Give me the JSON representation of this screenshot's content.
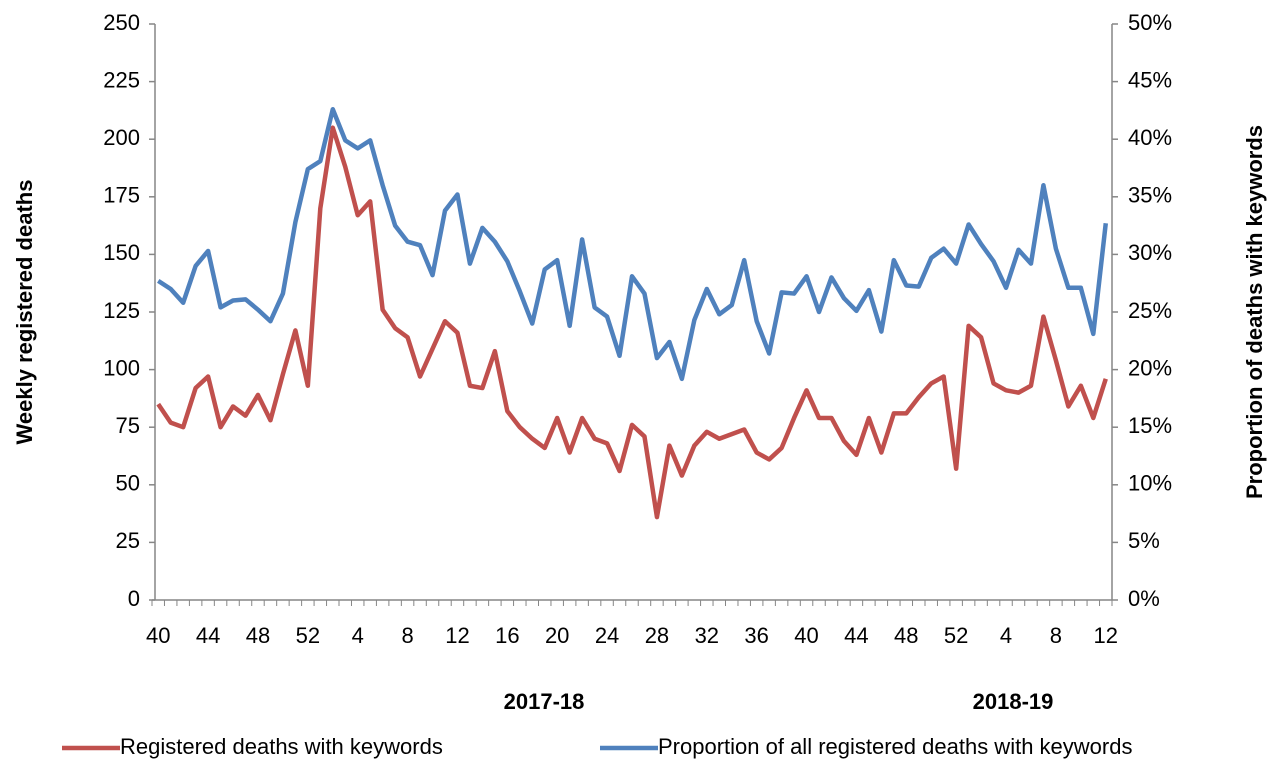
{
  "chart_data": {
    "type": "line",
    "y_label": "Weekly registered deaths",
    "y2_label": "Proportion of deaths with keywords",
    "annotations": [
      "2017-18",
      "2018-19"
    ],
    "categories": [
      "40",
      null,
      null,
      null,
      "44",
      null,
      null,
      null,
      "48",
      null,
      null,
      null,
      "52",
      null,
      null,
      null,
      "4",
      null,
      null,
      null,
      "8",
      null,
      null,
      null,
      "12",
      null,
      null,
      null,
      "16",
      null,
      null,
      null,
      "20",
      null,
      null,
      null,
      "24",
      null,
      null,
      null,
      "28",
      null,
      null,
      null,
      "32",
      null,
      null,
      null,
      "36",
      null,
      null,
      null,
      "40",
      null,
      null,
      null,
      "44",
      null,
      null,
      null,
      "48",
      null,
      null,
      null,
      "52",
      null,
      null,
      null,
      "4",
      null,
      null,
      null,
      "8",
      null,
      null,
      null,
      "12"
    ],
    "ylim": [
      0,
      250
    ],
    "yticks": [
      0,
      25,
      50,
      75,
      100,
      125,
      150,
      175,
      200,
      225,
      250
    ],
    "y2lim": [
      0,
      50
    ],
    "y2ticks": [
      {
        "value": 0,
        "label": "0%"
      },
      {
        "value": 5,
        "label": "5%"
      },
      {
        "value": 10,
        "label": "10%"
      },
      {
        "value": 15,
        "label": "15%"
      },
      {
        "value": 20,
        "label": "20%"
      },
      {
        "value": 25,
        "label": "25%"
      },
      {
        "value": 30,
        "label": "30%"
      },
      {
        "value": 35,
        "label": "35%"
      },
      {
        "value": 40,
        "label": "40%"
      },
      {
        "value": 45,
        "label": "45%"
      },
      {
        "value": 50,
        "label": "50%"
      }
    ],
    "legend": "bottom",
    "series": [
      {
        "name": "Registered deaths with keywords",
        "color": "#c0504d",
        "values": [
          85,
          77,
          75,
          92,
          97,
          75,
          84,
          80,
          89,
          78,
          98,
          117,
          93,
          170,
          205,
          188,
          167,
          173,
          126,
          118,
          114,
          97,
          109,
          121,
          116,
          93,
          92,
          108,
          82,
          75,
          70,
          66,
          79,
          64,
          79,
          70,
          68,
          56,
          76,
          71,
          36,
          67,
          54,
          67,
          73,
          70,
          72,
          74,
          64,
          61,
          66,
          79,
          91,
          79,
          79,
          69,
          63,
          79,
          64,
          81,
          81,
          88,
          94,
          97,
          57,
          119,
          114,
          94,
          91,
          90,
          93,
          123,
          104,
          84,
          93,
          79,
          96
        ]
      },
      {
        "name": "Proportion of all registered deaths with keywords",
        "color": "#4f81bd",
        "axis": "y2",
        "values": [
          27.7,
          27,
          25.8,
          29,
          30.3,
          25.4,
          26,
          26.1,
          25.2,
          24.2,
          26.6,
          32.8,
          37.4,
          38.1,
          42.6,
          39.9,
          39.2,
          39.9,
          36,
          32.5,
          31.1,
          30.8,
          28.2,
          33.8,
          35.2,
          29.2,
          32.3,
          31.1,
          29.4,
          26.8,
          24,
          28.7,
          29.5,
          23.8,
          31.3,
          25.4,
          24.6,
          21.2,
          28.1,
          26.6,
          21,
          22.4,
          19.2,
          24.3,
          27,
          24.8,
          25.6,
          29.5,
          24.2,
          21.4,
          26.7,
          26.6,
          28.1,
          25,
          28,
          26.2,
          25.1,
          26.9,
          23.3,
          29.5,
          27.3,
          27.2,
          29.7,
          30.5,
          29.2,
          32.6,
          30.9,
          29.4,
          27.1,
          30.4,
          29.2,
          36,
          30.5,
          27.1,
          27.1,
          23.1,
          32.7
        ]
      }
    ]
  }
}
